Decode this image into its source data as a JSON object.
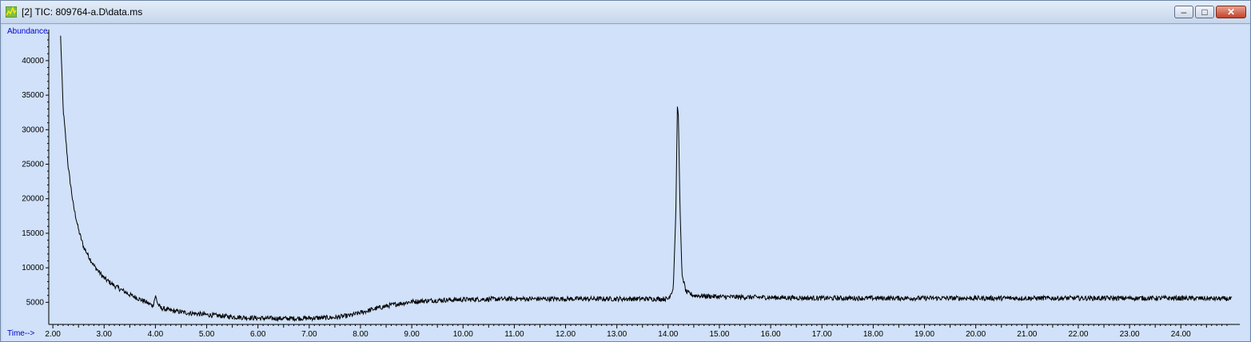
{
  "window": {
    "title": "[2] TIC: 809764-a.D\\data.ms",
    "buttons": {
      "minimize": "–",
      "maximize": "□",
      "close": "✕"
    },
    "icons": {
      "app": "chromatogram-icon"
    }
  },
  "chart_data": {
    "type": "line",
    "title": "",
    "ylabel": "Abundance",
    "xlabel": "Time-->",
    "xlim": [
      1.92,
      25.15
    ],
    "ylim": [
      1800,
      44500
    ],
    "x_ticks": [
      "2.00",
      "3.00",
      "4.00",
      "5.00",
      "6.00",
      "7.00",
      "8.00",
      "9.00",
      "10.00",
      "11.00",
      "12.00",
      "13.00",
      "14.00",
      "15.00",
      "16.00",
      "17.00",
      "18.00",
      "19.00",
      "20.00",
      "21.00",
      "22.00",
      "23.00",
      "24.00"
    ],
    "y_ticks": [
      "5000",
      "10000",
      "15000",
      "20000",
      "25000",
      "30000",
      "35000",
      "40000"
    ],
    "grid": false,
    "line_color": "#000000",
    "background_color": "#d0e1f9",
    "series": [
      {
        "x": [
          2.15,
          2.2,
          2.3,
          2.4,
          2.5,
          2.6,
          2.8,
          3.0,
          3.2,
          3.5,
          3.8,
          3.95,
          4.0,
          4.05,
          4.1,
          4.3,
          4.6,
          5.0,
          5.5,
          6.0,
          6.5,
          7.0,
          7.5,
          7.8,
          8.0,
          8.3,
          8.6,
          9.0,
          9.5,
          10.0,
          11.0,
          12.0,
          13.0,
          14.0,
          14.1,
          14.15,
          14.18,
          14.2,
          14.23,
          14.27,
          14.35,
          14.5,
          15.0,
          16.0,
          17.0,
          18.0,
          19.0,
          20.0,
          21.0,
          22.0,
          23.0,
          24.0,
          25.0
        ],
        "y": [
          43500,
          33000,
          24500,
          19000,
          15500,
          13000,
          10300,
          8500,
          7400,
          6100,
          5100,
          4500,
          5900,
          4700,
          4200,
          3800,
          3500,
          3200,
          2900,
          2700,
          2650,
          2700,
          2800,
          3100,
          3500,
          4100,
          4600,
          5100,
          5300,
          5400,
          5500,
          5500,
          5500,
          5500,
          7000,
          18000,
          33500,
          32000,
          19000,
          9000,
          6500,
          6000,
          5800,
          5700,
          5600,
          5600,
          5600,
          5600,
          5600,
          5600,
          5600,
          5600,
          5500
        ]
      }
    ]
  }
}
